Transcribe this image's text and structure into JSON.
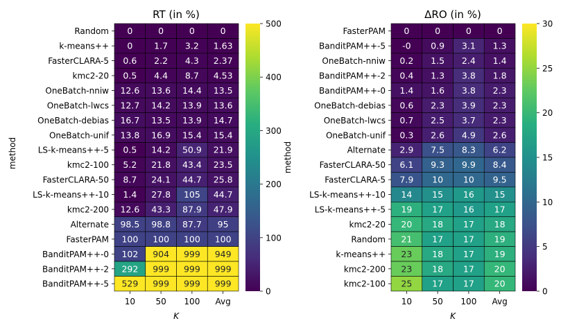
{
  "chart_data": [
    {
      "type": "heatmap",
      "title": "RT (in %)",
      "xlabel": "K",
      "ylabel": "method",
      "columns": [
        "10",
        "50",
        "100",
        "Avg"
      ],
      "rows": [
        "Random",
        "k-means++",
        "FasterCLARA-5",
        "kmc2-20",
        "OneBatch-nniw",
        "OneBatch-lwcs",
        "OneBatch-debias",
        "OneBatch-unif",
        "LS-k-means++-5",
        "kmc2-100",
        "FasterCLARA-50",
        "LS-k-means++-10",
        "kmc2-200",
        "Alternate",
        "FasterPAM",
        "BanditPAM++-0",
        "BanditPAM++-2",
        "BanditPAM++-5"
      ],
      "cells": [
        [
          "0",
          "0",
          "0",
          "0"
        ],
        [
          "0",
          "1.7",
          "3.2",
          "1.63"
        ],
        [
          "0.6",
          "2.2",
          "4.3",
          "2.37"
        ],
        [
          "0.5",
          "4.4",
          "8.7",
          "4.53"
        ],
        [
          "12.6",
          "13.6",
          "14.4",
          "13.5"
        ],
        [
          "12.7",
          "14.2",
          "13.9",
          "13.6"
        ],
        [
          "16.7",
          "13.5",
          "13.9",
          "14.7"
        ],
        [
          "13.8",
          "16.9",
          "15.4",
          "15.4"
        ],
        [
          "0.5",
          "14.2",
          "50.9",
          "21.9"
        ],
        [
          "5.2",
          "21.8",
          "43.4",
          "23.5"
        ],
        [
          "8.7",
          "24.1",
          "44.7",
          "25.8"
        ],
        [
          "1.4",
          "27.8",
          "105",
          "44.7"
        ],
        [
          "12.6",
          "43.3",
          "87.9",
          "47.9"
        ],
        [
          "98.5",
          "98.8",
          "87.7",
          "95"
        ],
        [
          "100",
          "100",
          "100",
          "100"
        ],
        [
          "102",
          "904",
          "999",
          "949"
        ],
        [
          "292",
          "999",
          "999",
          "999"
        ],
        [
          "529",
          "999",
          "999",
          "999"
        ]
      ],
      "colorbar": {
        "range": [
          0,
          500
        ],
        "ticks": [
          "0",
          "100",
          "200",
          "300",
          "400",
          "500"
        ],
        "colormap": "viridis"
      }
    },
    {
      "type": "heatmap",
      "title": "ΔRO (in %)",
      "xlabel": "K",
      "ylabel": "method",
      "columns": [
        "10",
        "50",
        "100",
        "Avg"
      ],
      "rows": [
        "FasterPAM",
        "BanditPAM++-5",
        "OneBatch-nniw",
        "BanditPAM++-2",
        "BanditPAM++-0",
        "OneBatch-debias",
        "OneBatch-lwcs",
        "OneBatch-unif",
        "Alternate",
        "FasterCLARA-50",
        "FasterCLARA-5",
        "LS-k-means++-10",
        "LS-k-means++-5",
        "kmc2-20",
        "Random",
        "k-means++",
        "kmc2-200",
        "kmc2-100"
      ],
      "cells": [
        [
          "0",
          "0",
          "0",
          "0"
        ],
        [
          "-0",
          "0.9",
          "3.1",
          "1.3"
        ],
        [
          "0.2",
          "1.5",
          "2.4",
          "1.4"
        ],
        [
          "0.4",
          "1.3",
          "3.8",
          "1.8"
        ],
        [
          "1.4",
          "1.6",
          "3.8",
          "2.3"
        ],
        [
          "0.6",
          "2.3",
          "3.9",
          "2.3"
        ],
        [
          "0.7",
          "2.5",
          "3.7",
          "2.3"
        ],
        [
          "0.3",
          "2.6",
          "4.9",
          "2.6"
        ],
        [
          "2.9",
          "7.5",
          "8.3",
          "6.2"
        ],
        [
          "6.1",
          "9.3",
          "9.9",
          "8.4"
        ],
        [
          "7.9",
          "10",
          "10",
          "9.5"
        ],
        [
          "14",
          "15",
          "16",
          "15"
        ],
        [
          "19",
          "17",
          "16",
          "17"
        ],
        [
          "20",
          "18",
          "17",
          "18"
        ],
        [
          "21",
          "17",
          "17",
          "19"
        ],
        [
          "23",
          "18",
          "17",
          "19"
        ],
        [
          "23",
          "18",
          "17",
          "20"
        ],
        [
          "25",
          "17",
          "17",
          "20"
        ]
      ],
      "colorbar": {
        "range": [
          0,
          30
        ],
        "ticks": [
          "0",
          "5",
          "10",
          "15",
          "20",
          "25",
          "30"
        ],
        "colormap": "viridis"
      }
    }
  ]
}
